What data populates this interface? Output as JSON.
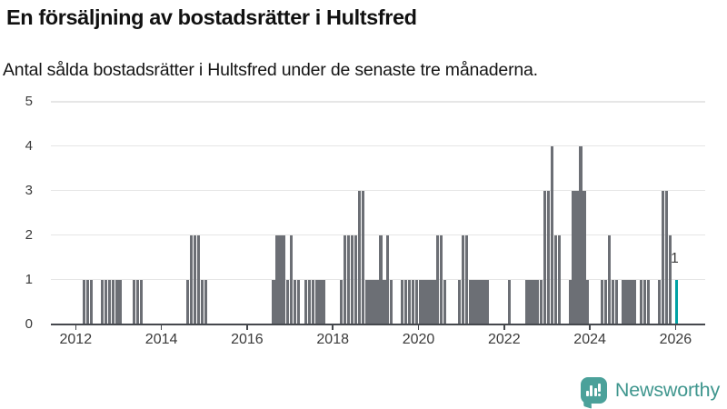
{
  "header": {
    "title": "En försäljning av bostadsrätter i Hultsfred",
    "subtitle": "Antal sålda bostadsrätter i Hultsfred under de senaste tre månaderna."
  },
  "footer": {
    "brand": "Newsworthy"
  },
  "colors": {
    "bar": "#6c6f75",
    "highlight": "#00a2a4",
    "axis": "#45484d",
    "grid": "#e6e6e6",
    "logo_teal": "#4ba19a",
    "wordmark_teal": "#3f968e"
  },
  "chart_data": {
    "type": "bar",
    "title": "En försäljning av bostadsrätter i Hultsfred",
    "subtitle": "Antal sålda bostadsrätter i Hultsfred under de senaste tre månaderna.",
    "xlabel": "",
    "ylabel": "",
    "ylim": [
      0,
      5
    ],
    "grid": true,
    "legend": "none",
    "y_ticks": [
      "0",
      "1",
      "2",
      "3",
      "4",
      "5"
    ],
    "x_ticks": [
      "2012",
      "2014",
      "2016",
      "2018",
      "2020",
      "2022",
      "2024",
      "2026"
    ],
    "annotation": {
      "text": "1",
      "month": "2026-01",
      "value": 1
    },
    "points": [
      {
        "month": "2012-03",
        "value": 1
      },
      {
        "month": "2012-04",
        "value": 1
      },
      {
        "month": "2012-05",
        "value": 1
      },
      {
        "month": "2012-08",
        "value": 1
      },
      {
        "month": "2012-09",
        "value": 1
      },
      {
        "month": "2012-10",
        "value": 1
      },
      {
        "month": "2012-11",
        "value": 1
      },
      {
        "month": "2012-12",
        "value": 1
      },
      {
        "month": "2013-01",
        "value": 1
      },
      {
        "month": "2013-05",
        "value": 1
      },
      {
        "month": "2013-06",
        "value": 1
      },
      {
        "month": "2013-07",
        "value": 1
      },
      {
        "month": "2014-08",
        "value": 1
      },
      {
        "month": "2014-09",
        "value": 2
      },
      {
        "month": "2014-10",
        "value": 2
      },
      {
        "month": "2014-11",
        "value": 2
      },
      {
        "month": "2014-12",
        "value": 1
      },
      {
        "month": "2015-01",
        "value": 1
      },
      {
        "month": "2016-08",
        "value": 1
      },
      {
        "month": "2016-09",
        "value": 2
      },
      {
        "month": "2016-10",
        "value": 2
      },
      {
        "month": "2016-11",
        "value": 2
      },
      {
        "month": "2016-12",
        "value": 1
      },
      {
        "month": "2017-01",
        "value": 2
      },
      {
        "month": "2017-02",
        "value": 1
      },
      {
        "month": "2017-03",
        "value": 1
      },
      {
        "month": "2017-05",
        "value": 1
      },
      {
        "month": "2017-06",
        "value": 1
      },
      {
        "month": "2017-07",
        "value": 1
      },
      {
        "month": "2017-08",
        "value": 1
      },
      {
        "month": "2017-09",
        "value": 1
      },
      {
        "month": "2017-10",
        "value": 1
      },
      {
        "month": "2018-03",
        "value": 1
      },
      {
        "month": "2018-04",
        "value": 2
      },
      {
        "month": "2018-05",
        "value": 2
      },
      {
        "month": "2018-06",
        "value": 2
      },
      {
        "month": "2018-07",
        "value": 2
      },
      {
        "month": "2018-08",
        "value": 3
      },
      {
        "month": "2018-09",
        "value": 3
      },
      {
        "month": "2018-10",
        "value": 1
      },
      {
        "month": "2018-11",
        "value": 1
      },
      {
        "month": "2018-12",
        "value": 1
      },
      {
        "month": "2019-01",
        "value": 1
      },
      {
        "month": "2019-02",
        "value": 2
      },
      {
        "month": "2019-03",
        "value": 1
      },
      {
        "month": "2019-04",
        "value": 2
      },
      {
        "month": "2019-05",
        "value": 1
      },
      {
        "month": "2019-08",
        "value": 1
      },
      {
        "month": "2019-09",
        "value": 1
      },
      {
        "month": "2019-10",
        "value": 1
      },
      {
        "month": "2019-11",
        "value": 1
      },
      {
        "month": "2019-12",
        "value": 1
      },
      {
        "month": "2020-01",
        "value": 1
      },
      {
        "month": "2020-02",
        "value": 1
      },
      {
        "month": "2020-03",
        "value": 1
      },
      {
        "month": "2020-04",
        "value": 1
      },
      {
        "month": "2020-05",
        "value": 1
      },
      {
        "month": "2020-06",
        "value": 2
      },
      {
        "month": "2020-07",
        "value": 2
      },
      {
        "month": "2020-08",
        "value": 1
      },
      {
        "month": "2020-12",
        "value": 1
      },
      {
        "month": "2021-01",
        "value": 2
      },
      {
        "month": "2021-02",
        "value": 2
      },
      {
        "month": "2021-03",
        "value": 1
      },
      {
        "month": "2021-04",
        "value": 1
      },
      {
        "month": "2021-05",
        "value": 1
      },
      {
        "month": "2021-06",
        "value": 1
      },
      {
        "month": "2021-07",
        "value": 1
      },
      {
        "month": "2021-08",
        "value": 1
      },
      {
        "month": "2022-02",
        "value": 1
      },
      {
        "month": "2022-07",
        "value": 1
      },
      {
        "month": "2022-08",
        "value": 1
      },
      {
        "month": "2022-09",
        "value": 1
      },
      {
        "month": "2022-10",
        "value": 1
      },
      {
        "month": "2022-11",
        "value": 1
      },
      {
        "month": "2022-12",
        "value": 3
      },
      {
        "month": "2023-01",
        "value": 3
      },
      {
        "month": "2023-02",
        "value": 4
      },
      {
        "month": "2023-03",
        "value": 2
      },
      {
        "month": "2023-04",
        "value": 2
      },
      {
        "month": "2023-07",
        "value": 1
      },
      {
        "month": "2023-08",
        "value": 3
      },
      {
        "month": "2023-09",
        "value": 3
      },
      {
        "month": "2023-10",
        "value": 4
      },
      {
        "month": "2023-11",
        "value": 3
      },
      {
        "month": "2023-12",
        "value": 1
      },
      {
        "month": "2024-04",
        "value": 1
      },
      {
        "month": "2024-05",
        "value": 1
      },
      {
        "month": "2024-06",
        "value": 2
      },
      {
        "month": "2024-07",
        "value": 1
      },
      {
        "month": "2024-08",
        "value": 1
      },
      {
        "month": "2024-10",
        "value": 1
      },
      {
        "month": "2024-11",
        "value": 1
      },
      {
        "month": "2024-12",
        "value": 1
      },
      {
        "month": "2025-01",
        "value": 1
      },
      {
        "month": "2025-03",
        "value": 1
      },
      {
        "month": "2025-04",
        "value": 1
      },
      {
        "month": "2025-05",
        "value": 1
      },
      {
        "month": "2025-08",
        "value": 1
      },
      {
        "month": "2025-09",
        "value": 3
      },
      {
        "month": "2025-10",
        "value": 3
      },
      {
        "month": "2025-11",
        "value": 2
      },
      {
        "month": "2026-01",
        "value": 1,
        "highlight": true
      }
    ]
  }
}
